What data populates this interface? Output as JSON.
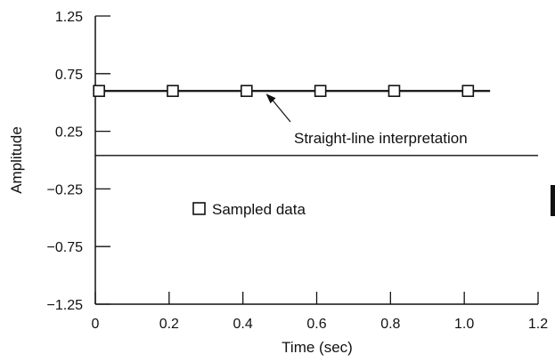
{
  "chart_data": {
    "type": "scatter",
    "xlabel": "Time (sec)",
    "ylabel": "Amplitude",
    "xlim": [
      0,
      1.2
    ],
    "ylim": [
      -1.25,
      1.25
    ],
    "x_ticks": [
      0,
      0.2,
      0.4,
      0.6,
      0.8,
      1.0,
      1.2
    ],
    "x_tick_labels": [
      "0",
      "0.2",
      "0.4",
      "0.6",
      "0.8",
      "1.0",
      "1.2"
    ],
    "y_ticks": [
      1.25,
      0.75,
      0.25,
      -0.25,
      -0.75,
      -1.25
    ],
    "y_tick_labels": [
      "1.25",
      "0.75",
      "0.25",
      "−0.25",
      "−0.75",
      "−1.25"
    ],
    "grid": false,
    "series": [
      {
        "name": "Sampled data",
        "marker": "square",
        "x": [
          0.01,
          0.21,
          0.41,
          0.61,
          0.81,
          1.01
        ],
        "y": [
          0.6,
          0.6,
          0.6,
          0.6,
          0.6,
          0.6
        ]
      }
    ],
    "line": {
      "x": [
        0,
        1.07
      ],
      "y": [
        0.6,
        0.6
      ]
    },
    "zero_line": {
      "x": [
        0,
        1.2
      ],
      "y": [
        0.04,
        0.04
      ]
    },
    "annotations": [
      {
        "text": "Straight-line interpretation",
        "arrow_to": [
          0.46,
          0.6
        ]
      }
    ],
    "legend": {
      "label": "Sampled data",
      "placement": "center-left"
    }
  },
  "colors": {
    "ink": "#111111",
    "background": "#ffffff"
  }
}
